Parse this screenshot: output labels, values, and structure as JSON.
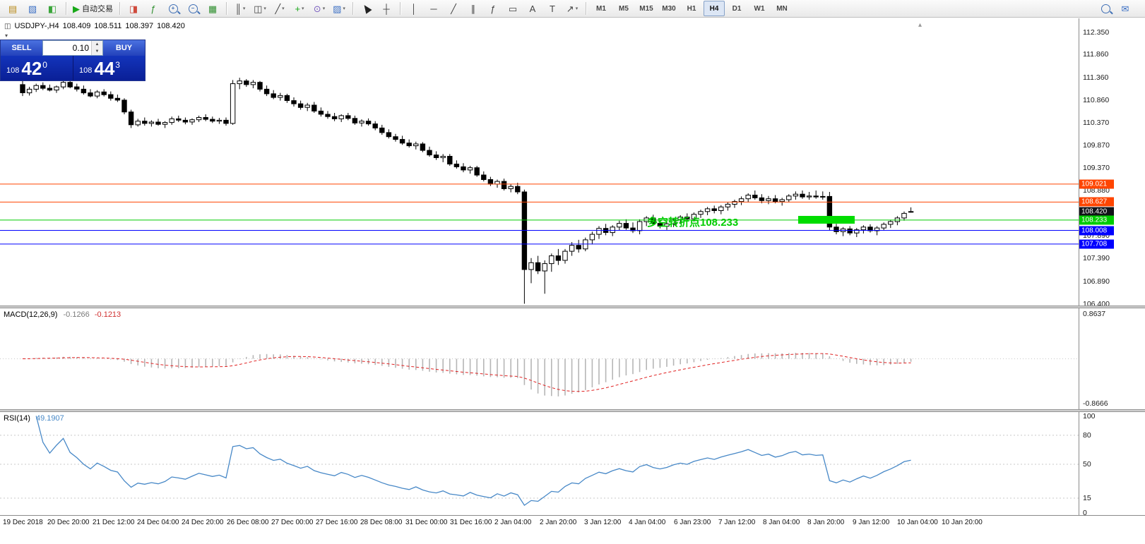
{
  "toolbar": {
    "groups": [
      {
        "items": [
          {
            "name": "new-chart",
            "glyph": "▤",
            "color": "#b98c1f"
          },
          {
            "name": "profiles",
            "glyph": "▧",
            "color": "#3b6fc4"
          },
          {
            "name": "market-watch",
            "glyph": "◧",
            "color": "#3aa53a"
          }
        ]
      },
      {
        "items": [
          {
            "name": "auto-trading",
            "glyph": "▶",
            "color": "#18a818",
            "label": "自动交易"
          }
        ]
      },
      {
        "items": [
          {
            "name": "new-order",
            "glyph": "◨",
            "color": "#cf4a3c"
          },
          {
            "name": "indicator-list",
            "glyph": "ƒ",
            "color": "#2f8f2f"
          },
          {
            "name": "zoom-in",
            "icon": "mag",
            "sign": "+"
          },
          {
            "name": "zoom-out",
            "icon": "mag",
            "sign": "−"
          },
          {
            "name": "tile-windows",
            "glyph": "▦",
            "color": "#2f8f2f"
          }
        ]
      },
      {
        "items": [
          {
            "name": "bar-chart-mode",
            "glyph": "║",
            "color": "#444",
            "dropdown": true
          },
          {
            "name": "candlestick-mode",
            "glyph": "◫",
            "color": "#444",
            "dropdown": true
          },
          {
            "name": "line-chart-mode",
            "glyph": "╱",
            "color": "#444",
            "dropdown": true
          },
          {
            "name": "add-indicators",
            "glyph": "+",
            "color": "#18a818",
            "dropdown": true
          },
          {
            "name": "periods",
            "glyph": "⊙",
            "color": "#7a5ec0",
            "dropdown": true
          },
          {
            "name": "templates",
            "glyph": "▨",
            "color": "#3b6fc4",
            "dropdown": true
          }
        ]
      },
      {
        "items": [
          {
            "name": "cursor",
            "icon": "cursor"
          },
          {
            "name": "crosshair",
            "glyph": "┼",
            "color": "#444"
          }
        ]
      },
      {
        "items": [
          {
            "name": "vertical-line",
            "glyph": "│",
            "color": "#444"
          },
          {
            "name": "horizontal-line",
            "glyph": "─",
            "color": "#444"
          },
          {
            "name": "trendline",
            "glyph": "╱",
            "color": "#444"
          },
          {
            "name": "equidistant-channel",
            "glyph": "∥",
            "color": "#444"
          },
          {
            "name": "fibonacci-retracement",
            "glyph": "ƒ",
            "color": "#444"
          },
          {
            "name": "shapes",
            "glyph": "▭",
            "color": "#444"
          },
          {
            "name": "text",
            "glyph": "A",
            "color": "#444"
          },
          {
            "name": "text-label",
            "glyph": "T",
            "color": "#444"
          },
          {
            "name": "arrows",
            "glyph": "↗",
            "color": "#444",
            "dropdown": true
          }
        ]
      },
      {
        "kind": "timeframes",
        "items": [
          {
            "name": "timeframe-m1",
            "label": "M1"
          },
          {
            "name": "timeframe-m5",
            "label": "M5"
          },
          {
            "name": "timeframe-m15",
            "label": "M15"
          },
          {
            "name": "timeframe-m30",
            "label": "M30"
          },
          {
            "name": "timeframe-h1",
            "label": "H1"
          },
          {
            "name": "timeframe-h4",
            "label": "H4",
            "active": true
          },
          {
            "name": "timeframe-d1",
            "label": "D1"
          },
          {
            "name": "timeframe-w1",
            "label": "W1"
          },
          {
            "name": "timeframe-mn",
            "label": "MN"
          }
        ]
      },
      {
        "align": "right",
        "items": [
          {
            "name": "search",
            "icon": "mag",
            "sign": ""
          },
          {
            "name": "community",
            "glyph": "✉",
            "color": "#3b6fc4"
          }
        ]
      }
    ]
  },
  "symbol_info": {
    "title": "USDJPY-,H4",
    "open": "108.409",
    "high": "108.511",
    "low": "108.397",
    "close": "108.420"
  },
  "one_click": {
    "sell_label": "SELL",
    "buy_label": "BUY",
    "lot": "0.10",
    "bid": {
      "prefix": "108",
      "big": "42",
      "sup": "0"
    },
    "ask": {
      "prefix": "108",
      "big": "44",
      "sup": "3"
    }
  },
  "annotation": {
    "text": "多空转折点108.233",
    "color": "#00CC00",
    "zone_price": 108.233
  },
  "levels": [
    {
      "price": 109.021,
      "label": "109.021",
      "color": "#FF4500",
      "line": true
    },
    {
      "price": 108.627,
      "label": "108.627",
      "color": "#FF4500",
      "line": true
    },
    {
      "price": 108.42,
      "label": "108.420",
      "color": "#111318",
      "line": false,
      "current": true
    },
    {
      "price": 108.233,
      "label": "108.233",
      "color": "#00CC00",
      "line": true
    },
    {
      "price": 108.008,
      "label": "108.008",
      "color": "#0000FF",
      "line": true
    },
    {
      "price": 107.708,
      "label": "107.708",
      "color": "#0000FF",
      "line": true
    }
  ],
  "price_axis": [
    112.35,
    111.86,
    111.36,
    110.86,
    110.37,
    109.87,
    109.37,
    108.88,
    108.38,
    107.89,
    107.39,
    106.89,
    106.4
  ],
  "chart_data": {
    "type": "candlestick",
    "symbol": "USDJPY-",
    "timeframe": "H4",
    "ylim": [
      106.4,
      112.35
    ],
    "ohlc": [
      [
        111.2,
        111.28,
        110.95,
        111.02
      ],
      [
        111.02,
        111.15,
        110.96,
        111.1
      ],
      [
        111.1,
        111.22,
        111.04,
        111.18
      ],
      [
        111.18,
        111.25,
        111.08,
        111.12
      ],
      [
        111.12,
        111.2,
        111.05,
        111.08
      ],
      [
        111.08,
        111.18,
        111.02,
        111.15
      ],
      [
        111.15,
        111.3,
        111.1,
        111.25
      ],
      [
        111.25,
        111.32,
        111.12,
        111.15
      ],
      [
        111.15,
        111.22,
        111.05,
        111.1
      ],
      [
        111.1,
        111.18,
        110.98,
        111.02
      ],
      [
        111.02,
        111.1,
        110.92,
        110.95
      ],
      [
        110.95,
        111.08,
        110.9,
        111.04
      ],
      [
        111.04,
        111.1,
        110.94,
        110.98
      ],
      [
        110.98,
        111.05,
        110.85,
        110.9
      ],
      [
        110.9,
        110.98,
        110.82,
        110.86
      ],
      [
        110.86,
        110.9,
        110.55,
        110.6
      ],
      [
        110.6,
        110.65,
        110.25,
        110.32
      ],
      [
        110.32,
        110.45,
        110.28,
        110.4
      ],
      [
        110.4,
        110.48,
        110.3,
        110.35
      ],
      [
        110.35,
        110.42,
        110.28,
        110.38
      ],
      [
        110.38,
        110.45,
        110.3,
        110.33
      ],
      [
        110.33,
        110.4,
        110.25,
        110.37
      ],
      [
        110.37,
        110.5,
        110.32,
        110.45
      ],
      [
        110.45,
        110.52,
        110.38,
        110.42
      ],
      [
        110.42,
        110.48,
        110.33,
        110.38
      ],
      [
        110.38,
        110.46,
        110.32,
        110.43
      ],
      [
        110.43,
        110.52,
        110.38,
        110.48
      ],
      [
        110.48,
        110.55,
        110.4,
        110.44
      ],
      [
        110.44,
        110.5,
        110.36,
        110.4
      ],
      [
        110.4,
        110.47,
        110.34,
        110.42
      ],
      [
        110.42,
        110.48,
        110.3,
        110.35
      ],
      [
        110.35,
        111.3,
        110.32,
        111.22
      ],
      [
        111.22,
        111.35,
        111.1,
        111.28
      ],
      [
        111.28,
        111.32,
        111.15,
        111.2
      ],
      [
        111.2,
        111.3,
        111.12,
        111.25
      ],
      [
        111.25,
        111.28,
        111.05,
        111.1
      ],
      [
        111.1,
        111.18,
        110.95,
        111.0
      ],
      [
        111.0,
        111.08,
        110.88,
        110.92
      ],
      [
        110.92,
        111.02,
        110.85,
        110.96
      ],
      [
        110.96,
        111.0,
        110.8,
        110.85
      ],
      [
        110.85,
        110.92,
        110.72,
        110.78
      ],
      [
        110.78,
        110.85,
        110.65,
        110.7
      ],
      [
        110.7,
        110.8,
        110.62,
        110.75
      ],
      [
        110.75,
        110.82,
        110.58,
        110.62
      ],
      [
        110.62,
        110.7,
        110.5,
        110.55
      ],
      [
        110.55,
        110.62,
        110.45,
        110.5
      ],
      [
        110.5,
        110.58,
        110.4,
        110.45
      ],
      [
        110.45,
        110.55,
        110.38,
        110.52
      ],
      [
        110.52,
        110.58,
        110.42,
        110.46
      ],
      [
        110.46,
        110.52,
        110.32,
        110.36
      ],
      [
        110.36,
        110.44,
        110.28,
        110.4
      ],
      [
        110.4,
        110.46,
        110.3,
        110.34
      ],
      [
        110.34,
        110.4,
        110.2,
        110.25
      ],
      [
        110.25,
        110.32,
        110.1,
        110.15
      ],
      [
        110.15,
        110.22,
        110.02,
        110.06
      ],
      [
        110.06,
        110.12,
        109.95,
        110.0
      ],
      [
        110.0,
        110.08,
        109.88,
        109.92
      ],
      [
        109.92,
        110.0,
        109.82,
        109.86
      ],
      [
        109.86,
        109.95,
        109.78,
        109.9
      ],
      [
        109.9,
        109.94,
        109.72,
        109.76
      ],
      [
        109.76,
        109.84,
        109.62,
        109.66
      ],
      [
        109.66,
        109.74,
        109.55,
        109.6
      ],
      [
        109.6,
        109.68,
        109.5,
        109.63
      ],
      [
        109.63,
        109.68,
        109.42,
        109.46
      ],
      [
        109.46,
        109.54,
        109.36,
        109.4
      ],
      [
        109.4,
        109.48,
        109.28,
        109.33
      ],
      [
        109.33,
        109.42,
        109.25,
        109.38
      ],
      [
        109.38,
        109.42,
        109.18,
        109.22
      ],
      [
        109.22,
        109.3,
        109.08,
        109.12
      ],
      [
        109.12,
        109.18,
        108.98,
        109.02
      ],
      [
        109.02,
        109.12,
        108.94,
        109.08
      ],
      [
        109.08,
        109.14,
        108.88,
        108.92
      ],
      [
        108.92,
        109.02,
        108.84,
        108.97
      ],
      [
        108.97,
        109.05,
        108.8,
        108.85
      ],
      [
        108.85,
        108.9,
        106.4,
        107.15
      ],
      [
        107.15,
        107.4,
        106.85,
        107.3
      ],
      [
        107.3,
        107.45,
        107.05,
        107.12
      ],
      [
        107.12,
        107.35,
        106.62,
        107.28
      ],
      [
        107.28,
        107.5,
        107.1,
        107.45
      ],
      [
        107.45,
        107.6,
        107.25,
        107.35
      ],
      [
        107.35,
        107.6,
        107.28,
        107.55
      ],
      [
        107.55,
        107.75,
        107.45,
        107.68
      ],
      [
        107.68,
        107.8,
        107.52,
        107.6
      ],
      [
        107.6,
        107.85,
        107.55,
        107.8
      ],
      [
        107.8,
        107.98,
        107.7,
        107.92
      ],
      [
        107.92,
        108.1,
        107.82,
        108.05
      ],
      [
        108.05,
        108.15,
        107.9,
        107.96
      ],
      [
        107.96,
        108.12,
        107.88,
        108.08
      ],
      [
        108.08,
        108.22,
        108.0,
        108.16
      ],
      [
        108.16,
        108.25,
        108.02,
        108.06
      ],
      [
        108.06,
        108.18,
        107.95,
        108.0
      ],
      [
        108.0,
        108.25,
        107.92,
        108.2
      ],
      [
        108.2,
        108.32,
        108.1,
        108.28
      ],
      [
        108.28,
        108.35,
        108.12,
        108.16
      ],
      [
        108.16,
        108.24,
        108.05,
        108.1
      ],
      [
        108.1,
        108.2,
        108.02,
        108.15
      ],
      [
        108.15,
        108.28,
        108.08,
        108.24
      ],
      [
        108.24,
        108.34,
        108.15,
        108.3
      ],
      [
        108.3,
        108.38,
        108.2,
        108.26
      ],
      [
        108.26,
        108.4,
        108.2,
        108.36
      ],
      [
        108.36,
        108.46,
        108.28,
        108.42
      ],
      [
        108.42,
        108.52,
        108.34,
        108.48
      ],
      [
        108.48,
        108.55,
        108.38,
        108.44
      ],
      [
        108.44,
        108.56,
        108.36,
        108.52
      ],
      [
        108.52,
        108.62,
        108.44,
        108.58
      ],
      [
        108.58,
        108.68,
        108.5,
        108.64
      ],
      [
        108.64,
        108.75,
        108.56,
        108.7
      ],
      [
        108.7,
        108.82,
        108.62,
        108.78
      ],
      [
        108.78,
        108.88,
        108.68,
        108.72
      ],
      [
        108.72,
        108.8,
        108.6,
        108.66
      ],
      [
        108.66,
        108.76,
        108.58,
        108.7
      ],
      [
        108.7,
        108.78,
        108.6,
        108.64
      ],
      [
        108.64,
        108.72,
        108.55,
        108.68
      ],
      [
        108.68,
        108.8,
        108.62,
        108.76
      ],
      [
        108.76,
        108.86,
        108.68,
        108.8
      ],
      [
        108.8,
        108.88,
        108.7,
        108.74
      ],
      [
        108.74,
        108.85,
        108.68,
        108.76
      ],
      [
        108.76,
        108.88,
        108.7,
        108.74
      ],
      [
        108.74,
        108.86,
        108.68,
        108.75
      ],
      [
        108.75,
        108.85,
        108.0,
        108.08
      ],
      [
        108.08,
        108.15,
        107.92,
        107.98
      ],
      [
        107.98,
        108.08,
        107.88,
        108.04
      ],
      [
        108.04,
        108.1,
        107.9,
        107.95
      ],
      [
        107.95,
        108.06,
        107.86,
        108.02
      ],
      [
        108.02,
        108.12,
        107.94,
        108.08
      ],
      [
        108.08,
        108.14,
        107.96,
        108.0
      ],
      [
        108.0,
        108.1,
        107.9,
        108.06
      ],
      [
        108.06,
        108.18,
        108.0,
        108.14
      ],
      [
        108.14,
        108.24,
        108.06,
        108.2
      ],
      [
        108.2,
        108.32,
        108.12,
        108.28
      ],
      [
        108.28,
        108.42,
        108.22,
        108.38
      ],
      [
        108.409,
        108.511,
        108.397,
        108.42
      ]
    ],
    "indicators": [
      {
        "name": "MACD(12,26,9)",
        "main_value": "-0.1266",
        "signal_value": "-0.1213",
        "axis_max": "0.8637",
        "axis_min": "-0.8666",
        "params": {
          "fast": 12,
          "slow": 26,
          "signal": 9
        }
      },
      {
        "name": "RSI(14)",
        "value": "49.1907",
        "period": 14,
        "levels": [
          80,
          50,
          15
        ],
        "axis": [
          "100",
          "80",
          "50",
          "15",
          "0"
        ]
      }
    ],
    "time_labels": [
      "19 Dec 2018",
      "20 Dec 20:00",
      "21 Dec 12:00",
      "24 Dec 04:00",
      "24 Dec 20:00",
      "26 Dec 08:00",
      "27 Dec 00:00",
      "27 Dec 16:00",
      "28 Dec 08:00",
      "31 Dec 00:00",
      "31 Dec 16:00",
      "2 Jan 04:00",
      "2 Jan 20:00",
      "3 Jan 12:00",
      "4 Jan 04:00",
      "6 Jan 23:00",
      "7 Jan 12:00",
      "8 Jan 04:00",
      "8 Jan 20:00",
      "9 Jan 12:00",
      "10 Jan 04:00",
      "10 Jan 20:00"
    ]
  }
}
